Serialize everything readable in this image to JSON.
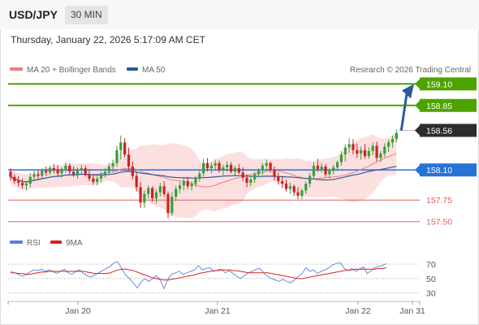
{
  "header": {
    "pair": "USD/JPY",
    "timeframe": "30 MIN"
  },
  "datetime": "Thursday, January 22, 2026 5:17:09 AM CET",
  "legend": {
    "ma20": "MA 20 + Bollinger Bands",
    "ma50": "MA 50",
    "credit": "Research © 2026 Trading Central",
    "rsi": "RSI",
    "ma9": "9MA"
  },
  "colors": {
    "bull": "#3a9d3a",
    "bear": "#cc2222",
    "ma20": "#e88080",
    "band": "#fcd9d9",
    "ma50": "#2e5a9c",
    "resistance": "#4ea300",
    "pivot": "#2673d6",
    "support": "#e06060",
    "current": "#2d2d2d",
    "arrow": "#2b5a9c",
    "rsi": "#5b7fd8",
    "rsi_ma": "#d62222"
  },
  "chart_data": [
    {
      "type": "candlestick",
      "title": "USD/JPY 30 MIN",
      "x_labels": [
        "Jan 20",
        "Jan 21",
        "Jan 22",
        "Jan 31"
      ],
      "ylim": [
        157.45,
        159.15
      ],
      "levels": [
        {
          "label": "159.10",
          "value": 159.1,
          "kind": "resistance"
        },
        {
          "label": "158.85",
          "value": 158.85,
          "kind": "resistance"
        },
        {
          "label": "158.56",
          "value": 158.56,
          "kind": "current"
        },
        {
          "label": "158.10",
          "value": 158.1,
          "kind": "pivot"
        },
        {
          "label": "157.75",
          "value": 157.75,
          "kind": "support"
        },
        {
          "label": "157.50",
          "value": 157.5,
          "kind": "support"
        }
      ],
      "target": {
        "from": 158.56,
        "to": 159.1
      },
      "ohlc": [
        [
          158.08,
          158.12,
          157.98,
          158.02
        ],
        [
          158.02,
          158.05,
          157.94,
          157.97
        ],
        [
          157.97,
          158.03,
          157.91,
          157.95
        ],
        [
          157.95,
          158.0,
          157.88,
          157.92
        ],
        [
          157.92,
          157.98,
          157.86,
          157.94
        ],
        [
          157.94,
          158.06,
          157.9,
          158.02
        ],
        [
          158.02,
          158.09,
          157.97,
          158.05
        ],
        [
          158.05,
          158.1,
          157.99,
          158.03
        ],
        [
          158.03,
          158.12,
          158.0,
          158.09
        ],
        [
          158.09,
          158.14,
          158.03,
          158.07
        ],
        [
          158.07,
          158.15,
          158.04,
          158.12
        ],
        [
          158.12,
          158.17,
          158.06,
          158.1
        ],
        [
          158.1,
          158.16,
          158.03,
          158.06
        ],
        [
          158.06,
          158.13,
          158.01,
          158.11
        ],
        [
          158.11,
          158.19,
          158.07,
          158.15
        ],
        [
          158.15,
          158.18,
          158.05,
          158.08
        ],
        [
          158.08,
          158.14,
          158.02,
          158.05
        ],
        [
          158.05,
          158.13,
          158.0,
          158.1
        ],
        [
          158.1,
          158.16,
          158.05,
          158.12
        ],
        [
          158.12,
          158.15,
          158.02,
          158.04
        ],
        [
          158.04,
          158.1,
          157.97,
          158.0
        ],
        [
          158.0,
          158.05,
          157.93,
          157.96
        ],
        [
          157.96,
          158.03,
          157.92,
          158.0
        ],
        [
          158.0,
          158.08,
          157.96,
          158.04
        ],
        [
          158.04,
          158.12,
          158.01,
          158.08
        ],
        [
          158.08,
          158.18,
          158.04,
          158.14
        ],
        [
          158.14,
          158.22,
          158.08,
          158.18
        ],
        [
          158.18,
          158.38,
          158.14,
          158.33
        ],
        [
          158.33,
          158.5,
          158.22,
          158.42
        ],
        [
          158.42,
          158.47,
          158.25,
          158.28
        ],
        [
          158.28,
          158.36,
          158.1,
          158.14
        ],
        [
          158.14,
          158.2,
          157.99,
          158.03
        ],
        [
          158.03,
          158.07,
          157.85,
          157.9
        ],
        [
          157.9,
          157.96,
          157.66,
          157.72
        ],
        [
          157.72,
          157.86,
          157.66,
          157.82
        ],
        [
          157.82,
          157.92,
          157.77,
          157.89
        ],
        [
          157.89,
          157.91,
          157.73,
          157.77
        ],
        [
          157.77,
          157.87,
          157.71,
          157.84
        ],
        [
          157.84,
          157.95,
          157.79,
          157.91
        ],
        [
          157.91,
          157.97,
          157.79,
          157.82
        ],
        [
          157.82,
          157.85,
          157.54,
          157.6
        ],
        [
          157.6,
          157.84,
          157.57,
          157.79
        ],
        [
          157.79,
          157.92,
          157.74,
          157.88
        ],
        [
          157.88,
          157.96,
          157.83,
          157.92
        ],
        [
          157.92,
          158.0,
          157.86,
          157.97
        ],
        [
          157.97,
          158.02,
          157.88,
          157.91
        ],
        [
          157.91,
          157.97,
          157.86,
          157.94
        ],
        [
          157.94,
          158.03,
          157.9,
          158.0
        ],
        [
          158.0,
          158.09,
          157.96,
          158.06
        ],
        [
          158.06,
          158.23,
          158.02,
          158.18
        ],
        [
          158.18,
          158.24,
          158.08,
          158.12
        ],
        [
          158.12,
          158.19,
          158.06,
          158.15
        ],
        [
          158.15,
          158.22,
          158.1,
          158.18
        ],
        [
          158.18,
          158.21,
          158.07,
          158.1
        ],
        [
          158.1,
          158.16,
          158.04,
          158.13
        ],
        [
          158.13,
          158.2,
          158.08,
          158.16
        ],
        [
          158.16,
          158.19,
          158.06,
          158.08
        ],
        [
          158.08,
          158.15,
          158.03,
          158.12
        ],
        [
          158.12,
          158.17,
          158.05,
          158.07
        ],
        [
          158.07,
          158.13,
          157.97,
          158.01
        ],
        [
          158.01,
          158.05,
          157.9,
          157.95
        ],
        [
          157.95,
          158.02,
          157.91,
          157.99
        ],
        [
          157.99,
          158.08,
          157.95,
          158.05
        ],
        [
          158.05,
          158.12,
          158.01,
          158.09
        ],
        [
          158.09,
          158.18,
          158.04,
          158.15
        ],
        [
          158.15,
          158.22,
          158.09,
          158.18
        ],
        [
          158.18,
          158.2,
          158.07,
          158.1
        ],
        [
          158.1,
          158.14,
          157.98,
          158.02
        ],
        [
          158.02,
          158.07,
          157.93,
          157.97
        ],
        [
          157.97,
          158.03,
          157.89,
          157.94
        ],
        [
          157.94,
          157.99,
          157.85,
          157.88
        ],
        [
          157.88,
          157.95,
          157.82,
          157.91
        ],
        [
          157.91,
          157.93,
          157.8,
          157.84
        ],
        [
          157.84,
          157.9,
          157.76,
          157.8
        ],
        [
          157.8,
          157.88,
          157.76,
          157.86
        ],
        [
          157.86,
          157.97,
          157.82,
          157.94
        ],
        [
          157.94,
          158.06,
          157.9,
          158.03
        ],
        [
          158.03,
          158.19,
          157.99,
          158.15
        ],
        [
          158.15,
          158.23,
          158.08,
          158.11
        ],
        [
          158.11,
          158.18,
          158.07,
          158.14
        ],
        [
          158.14,
          158.17,
          158.02,
          158.05
        ],
        [
          158.05,
          158.12,
          158.0,
          158.09
        ],
        [
          158.09,
          158.16,
          158.05,
          158.13
        ],
        [
          158.13,
          158.21,
          158.09,
          158.19
        ],
        [
          158.19,
          158.32,
          158.15,
          158.28
        ],
        [
          158.28,
          158.4,
          158.2,
          158.36
        ],
        [
          158.36,
          158.47,
          158.3,
          158.4
        ],
        [
          158.4,
          158.46,
          158.28,
          158.33
        ],
        [
          158.33,
          158.41,
          158.24,
          158.29
        ],
        [
          158.29,
          158.37,
          158.22,
          158.33
        ],
        [
          158.33,
          158.4,
          158.23,
          158.26
        ],
        [
          158.26,
          158.36,
          158.23,
          158.32
        ],
        [
          158.32,
          158.42,
          158.27,
          158.38
        ],
        [
          158.38,
          158.43,
          158.2,
          158.24
        ],
        [
          158.24,
          158.32,
          158.19,
          158.29
        ],
        [
          158.29,
          158.41,
          158.25,
          158.37
        ],
        [
          158.37,
          158.45,
          158.31,
          158.42
        ],
        [
          158.42,
          158.5,
          158.36,
          158.46
        ],
        [
          158.46,
          158.57,
          158.42,
          158.53
        ]
      ]
    },
    {
      "type": "line",
      "title": "RSI",
      "series": [
        {
          "name": "RSI"
        },
        {
          "name": "9MA"
        }
      ],
      "yticks": [
        70,
        50,
        30
      ],
      "ylim": [
        25,
        78
      ],
      "rsi": [
        60,
        58,
        56,
        53,
        55,
        59,
        62,
        61,
        63,
        60,
        62,
        60,
        57,
        60,
        63,
        58,
        56,
        60,
        62,
        57,
        54,
        52,
        55,
        58,
        61,
        64,
        67,
        72,
        73,
        63,
        55,
        50,
        44,
        37,
        45,
        50,
        46,
        50,
        54,
        48,
        36,
        49,
        56,
        58,
        60,
        56,
        58,
        60,
        62,
        68,
        62,
        64,
        65,
        60,
        62,
        63,
        58,
        61,
        57,
        53,
        50,
        54,
        58,
        60,
        63,
        64,
        58,
        53,
        50,
        48,
        46,
        49,
        46,
        44,
        48,
        53,
        57,
        65,
        60,
        62,
        57,
        60,
        62,
        65,
        69,
        71,
        72,
        64,
        61,
        64,
        60,
        63,
        66,
        57,
        61,
        65,
        67,
        68,
        71
      ],
      "rsi_ma": [
        58,
        58,
        57,
        57,
        56,
        56,
        57,
        58,
        59,
        59,
        60,
        60,
        60,
        60,
        60,
        60,
        60,
        60,
        60,
        60,
        59,
        58,
        57,
        57,
        57,
        57,
        58,
        60,
        62,
        63,
        63,
        62,
        61,
        59,
        57,
        55,
        53,
        51,
        50,
        49,
        48,
        48,
        49,
        50,
        51,
        52,
        53,
        54,
        55,
        57,
        58,
        59,
        60,
        61,
        61,
        62,
        62,
        62,
        61,
        61,
        60,
        59,
        58,
        58,
        58,
        58,
        58,
        58,
        57,
        56,
        55,
        54,
        53,
        52,
        51,
        50,
        50,
        51,
        52,
        53,
        54,
        55,
        56,
        57,
        58,
        59,
        60,
        61,
        62,
        62,
        63,
        63,
        63,
        63,
        63,
        63,
        64,
        64,
        65
      ]
    }
  ]
}
